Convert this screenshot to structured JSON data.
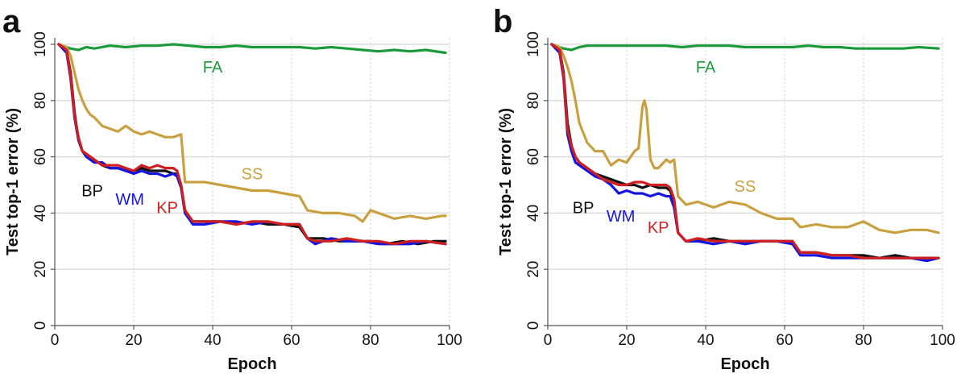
{
  "chart_data": [
    {
      "panel_label": "a",
      "type": "line",
      "xlabel": "Epoch",
      "ylabel": "Test top-1 error (%)",
      "xlim": [
        0,
        100
      ],
      "ylim": [
        0,
        100
      ],
      "xticks": [
        "0",
        "20",
        "40",
        "60",
        "80",
        "100"
      ],
      "yticks": [
        "0",
        "20",
        "40",
        "60",
        "80",
        "100"
      ],
      "grid": true,
      "series": [
        {
          "name": "FA",
          "color": "#1a9a3a",
          "x": [
            1,
            4,
            6,
            8,
            10,
            14,
            18,
            22,
            26,
            30,
            34,
            38,
            42,
            46,
            50,
            54,
            58,
            62,
            66,
            70,
            74,
            78,
            82,
            86,
            90,
            94,
            99
          ],
          "y": [
            100,
            98.5,
            98,
            99,
            98.5,
            99.5,
            99,
            99.5,
            99.5,
            100,
            99.5,
            99,
            99,
            99.5,
            99,
            99,
            99,
            99,
            98.5,
            99,
            98.5,
            98,
            97.5,
            98,
            97.5,
            98,
            97
          ]
        },
        {
          "name": "SS",
          "color": "#c9a040",
          "x": [
            1,
            3,
            4,
            5,
            6,
            7,
            8,
            9,
            10,
            12,
            14,
            16,
            18,
            20,
            22,
            24,
            26,
            28,
            30,
            32,
            33,
            35,
            38,
            42,
            46,
            50,
            54,
            58,
            62,
            64,
            68,
            72,
            76,
            78,
            80,
            84,
            86,
            90,
            94,
            98,
            99
          ],
          "y": [
            100,
            99,
            96,
            90,
            84,
            80,
            77,
            75,
            74,
            71,
            70,
            69,
            71,
            69,
            68,
            69,
            68,
            67,
            67,
            68,
            51,
            51,
            51,
            50,
            49,
            48,
            48,
            47,
            46,
            41,
            40,
            40,
            39,
            37,
            41,
            39,
            38,
            39,
            38,
            39,
            39
          ]
        },
        {
          "name": "BP",
          "color": "#111111",
          "x": [
            1,
            3,
            4,
            5,
            6,
            7,
            8,
            10,
            12,
            14,
            16,
            18,
            20,
            22,
            24,
            26,
            28,
            30,
            31,
            32,
            33,
            35,
            38,
            42,
            46,
            50,
            54,
            58,
            62,
            64,
            68,
            72,
            76,
            80,
            84,
            88,
            92,
            96,
            99
          ],
          "y": [
            100,
            98,
            90,
            76,
            66,
            62,
            61,
            59,
            57,
            56,
            56,
            55,
            55,
            56,
            55,
            55,
            55,
            54,
            54,
            50,
            40,
            37,
            37,
            37,
            36,
            37,
            36,
            36,
            35,
            31,
            31,
            30,
            30,
            30,
            29,
            30,
            29,
            30,
            30
          ]
        },
        {
          "name": "WM",
          "color": "#1515e0",
          "x": [
            1,
            3,
            4,
            5,
            6,
            7,
            8,
            10,
            12,
            14,
            16,
            18,
            20,
            22,
            24,
            26,
            28,
            30,
            31,
            32,
            33,
            35,
            38,
            42,
            46,
            50,
            54,
            58,
            62,
            64,
            66,
            70,
            74,
            78,
            82,
            86,
            90,
            94,
            99
          ],
          "y": [
            100,
            97,
            88,
            74,
            66,
            62,
            60,
            58,
            58,
            56,
            56,
            55,
            54,
            55,
            54,
            54,
            53,
            54,
            53,
            49,
            40,
            36,
            36,
            37,
            37,
            36,
            37,
            36,
            36,
            31,
            29,
            31,
            30,
            30,
            29,
            29,
            29,
            30,
            29
          ]
        },
        {
          "name": "KP",
          "color": "#d11e1e",
          "x": [
            1,
            3,
            4,
            5,
            6,
            7,
            8,
            10,
            12,
            14,
            16,
            18,
            20,
            22,
            24,
            26,
            28,
            30,
            31,
            32,
            33,
            35,
            38,
            42,
            46,
            50,
            54,
            58,
            62,
            64,
            66,
            70,
            74,
            78,
            82,
            86,
            90,
            94,
            99
          ],
          "y": [
            100,
            98,
            89,
            75,
            67,
            62,
            61,
            59,
            57,
            57,
            57,
            56,
            55,
            57,
            56,
            57,
            56,
            56,
            55,
            50,
            41,
            37,
            37,
            37,
            36,
            37,
            37,
            36,
            36,
            31,
            30,
            30,
            31,
            30,
            30,
            29,
            30,
            30,
            29
          ]
        }
      ],
      "annotations": [
        {
          "text": "FA",
          "x": 40,
          "y": 92,
          "color": "#1a9a3a"
        },
        {
          "text": "SS",
          "x": 50,
          "y": 54,
          "color": "#c9a040"
        },
        {
          "text": "BP",
          "x": 9.5,
          "y": 48,
          "color": "#111111"
        },
        {
          "text": "WM",
          "x": 19,
          "y": 45,
          "color": "#1515e0"
        },
        {
          "text": "KP",
          "x": 28.5,
          "y": 42,
          "color": "#d11e1e"
        }
      ]
    },
    {
      "panel_label": "b",
      "type": "line",
      "xlabel": "Epoch",
      "ylabel": "Test top-1 error (%)",
      "xlim": [
        0,
        100
      ],
      "ylim": [
        0,
        100
      ],
      "xticks": [
        "0",
        "20",
        "40",
        "60",
        "80",
        "100"
      ],
      "yticks": [
        "0",
        "20",
        "40",
        "60",
        "80",
        "100"
      ],
      "grid": true,
      "series": [
        {
          "name": "FA",
          "color": "#1a9a3a",
          "x": [
            1,
            4,
            6,
            8,
            10,
            14,
            18,
            22,
            26,
            30,
            34,
            38,
            42,
            46,
            50,
            54,
            58,
            62,
            66,
            70,
            74,
            78,
            82,
            86,
            90,
            94,
            99
          ],
          "y": [
            100,
            98.5,
            98,
            99,
            99.5,
            99.5,
            99.5,
            99.5,
            99.5,
            99.5,
            99,
            99.5,
            99.5,
            99.5,
            99,
            99,
            99,
            99,
            99.5,
            99,
            99,
            98.5,
            98.5,
            98.5,
            98.5,
            99,
            98.5
          ]
        },
        {
          "name": "SS",
          "color": "#c9a040",
          "x": [
            1,
            3,
            4,
            5,
            6,
            7,
            8,
            10,
            12,
            14,
            16,
            18,
            20,
            22,
            23,
            24,
            24.5,
            25,
            26,
            27,
            28,
            30,
            31,
            32,
            33,
            35,
            38,
            42,
            46,
            50,
            54,
            58,
            62,
            64,
            68,
            72,
            76,
            80,
            84,
            88,
            92,
            96,
            99
          ],
          "y": [
            100,
            99,
            96,
            92,
            87,
            80,
            72,
            65,
            62,
            62,
            57,
            59,
            58,
            62,
            63,
            78,
            80,
            77,
            59,
            56,
            56,
            59,
            58,
            59,
            46,
            43,
            44,
            42,
            44,
            43,
            40,
            38,
            38,
            35,
            36,
            35,
            35,
            37,
            34,
            33,
            34,
            34,
            33
          ]
        },
        {
          "name": "BP",
          "color": "#111111",
          "x": [
            1,
            3,
            4,
            5,
            6,
            7,
            8,
            10,
            12,
            14,
            16,
            18,
            20,
            22,
            24,
            26,
            28,
            30,
            31,
            32,
            33,
            35,
            38,
            42,
            46,
            50,
            54,
            58,
            62,
            64,
            68,
            72,
            76,
            80,
            84,
            88,
            92,
            96,
            99
          ],
          "y": [
            100,
            98,
            90,
            72,
            64,
            60,
            58,
            56,
            54,
            53,
            52,
            51,
            50,
            50,
            49,
            50,
            49,
            49,
            48,
            44,
            33,
            30,
            30,
            31,
            30,
            30,
            30,
            30,
            30,
            26,
            26,
            25,
            25,
            25,
            24,
            25,
            24,
            24,
            24
          ]
        },
        {
          "name": "WM",
          "color": "#1515e0",
          "x": [
            1,
            3,
            4,
            5,
            6,
            7,
            8,
            10,
            12,
            14,
            16,
            18,
            20,
            22,
            24,
            26,
            28,
            30,
            31,
            32,
            33,
            35,
            38,
            42,
            46,
            50,
            54,
            58,
            62,
            64,
            68,
            72,
            76,
            80,
            84,
            88,
            92,
            96,
            99
          ],
          "y": [
            100,
            97,
            88,
            68,
            62,
            58,
            57,
            55,
            53,
            52,
            50,
            47,
            48,
            47,
            47,
            46,
            47,
            46,
            46,
            42,
            33,
            30,
            30,
            29,
            30,
            29,
            30,
            30,
            29,
            25,
            25,
            24,
            24,
            24,
            24,
            24,
            24,
            23,
            24
          ]
        },
        {
          "name": "KP",
          "color": "#d11e1e",
          "x": [
            1,
            3,
            4,
            5,
            6,
            7,
            8,
            10,
            12,
            14,
            16,
            18,
            20,
            22,
            24,
            26,
            28,
            30,
            31,
            32,
            33,
            35,
            38,
            42,
            46,
            50,
            54,
            58,
            62,
            64,
            68,
            72,
            76,
            80,
            84,
            88,
            92,
            96,
            99
          ],
          "y": [
            100,
            98,
            89,
            70,
            64,
            60,
            58,
            56,
            54,
            52,
            51,
            50,
            50,
            51,
            51,
            50,
            50,
            50,
            49,
            45,
            33,
            30,
            31,
            30,
            30,
            30,
            30,
            30,
            30,
            26,
            26,
            25,
            25,
            24,
            24,
            24,
            24,
            24,
            24
          ]
        }
      ],
      "annotations": [
        {
          "text": "FA",
          "x": 40,
          "y": 92,
          "color": "#1a9a3a"
        },
        {
          "text": "SS",
          "x": 50,
          "y": 49.5,
          "color": "#c9a040"
        },
        {
          "text": "BP",
          "x": 9,
          "y": 42,
          "color": "#111111"
        },
        {
          "text": "WM",
          "x": 18.5,
          "y": 39,
          "color": "#1515e0"
        },
        {
          "text": "KP",
          "x": 28,
          "y": 35,
          "color": "#d11e1e"
        }
      ]
    }
  ]
}
